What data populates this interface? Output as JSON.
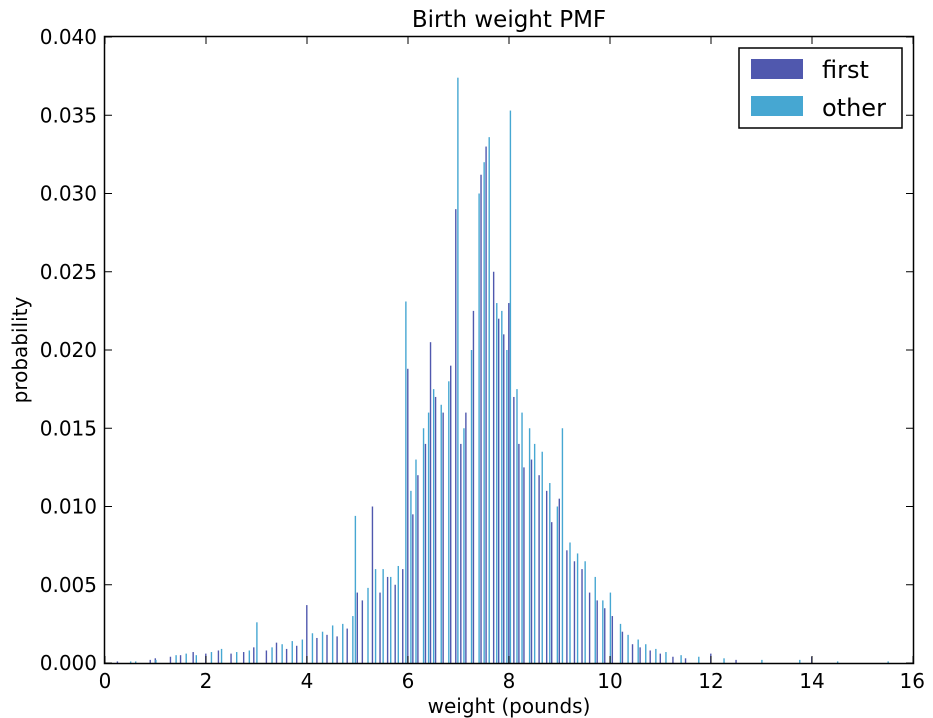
{
  "chart_data": {
    "type": "bar",
    "title": "Birth weight PMF",
    "xlabel": "weight (pounds)",
    "ylabel": "probability",
    "xlim": [
      0,
      16
    ],
    "ylim": [
      0,
      0.04
    ],
    "x_ticks": [
      "0",
      "2",
      "4",
      "6",
      "8",
      "10",
      "12",
      "14",
      "16"
    ],
    "y_ticks": [
      "0.000",
      "0.005",
      "0.010",
      "0.015",
      "0.020",
      "0.025",
      "0.030",
      "0.035",
      "0.040"
    ],
    "grid": false,
    "legend_position": "top-right",
    "colors": {
      "first": "#5058ae",
      "other": "#46a7d2"
    },
    "series": [
      {
        "name": "first",
        "points": [
          [
            0.25,
            0.0001
          ],
          [
            0.9,
            0.0002
          ],
          [
            1.0,
            0.0003
          ],
          [
            1.3,
            0.0004
          ],
          [
            1.5,
            0.0005
          ],
          [
            1.75,
            0.0007
          ],
          [
            2.0,
            0.0006
          ],
          [
            2.25,
            0.0008
          ],
          [
            2.5,
            0.0006
          ],
          [
            2.75,
            0.0007
          ],
          [
            2.95,
            0.001
          ],
          [
            3.2,
            0.0008
          ],
          [
            3.4,
            0.0013
          ],
          [
            3.6,
            0.0009
          ],
          [
            3.8,
            0.0011
          ],
          [
            4.0,
            0.0037
          ],
          [
            4.2,
            0.0016
          ],
          [
            4.4,
            0.0018
          ],
          [
            4.6,
            0.0017
          ],
          [
            4.8,
            0.0022
          ],
          [
            5.0,
            0.0045
          ],
          [
            5.1,
            0.004
          ],
          [
            5.3,
            0.01
          ],
          [
            5.45,
            0.0045
          ],
          [
            5.6,
            0.0055
          ],
          [
            5.75,
            0.005
          ],
          [
            5.9,
            0.006
          ],
          [
            6.0,
            0.0188
          ],
          [
            6.1,
            0.0095
          ],
          [
            6.2,
            0.012
          ],
          [
            6.35,
            0.014
          ],
          [
            6.45,
            0.0205
          ],
          [
            6.55,
            0.017
          ],
          [
            6.7,
            0.016
          ],
          [
            6.85,
            0.019
          ],
          [
            6.95,
            0.029
          ],
          [
            7.05,
            0.014
          ],
          [
            7.15,
            0.016
          ],
          [
            7.3,
            0.0225
          ],
          [
            7.45,
            0.0312
          ],
          [
            7.55,
            0.033
          ],
          [
            7.7,
            0.025
          ],
          [
            7.8,
            0.022
          ],
          [
            7.9,
            0.021
          ],
          [
            8.0,
            0.023
          ],
          [
            8.1,
            0.017
          ],
          [
            8.2,
            0.014
          ],
          [
            8.3,
            0.0125
          ],
          [
            8.45,
            0.013
          ],
          [
            8.6,
            0.012
          ],
          [
            8.75,
            0.011
          ],
          [
            8.85,
            0.009
          ],
          [
            9.0,
            0.0105
          ],
          [
            9.15,
            0.0072
          ],
          [
            9.3,
            0.0065
          ],
          [
            9.45,
            0.006
          ],
          [
            9.6,
            0.0045
          ],
          [
            9.75,
            0.004
          ],
          [
            9.9,
            0.0035
          ],
          [
            10.05,
            0.003
          ],
          [
            10.25,
            0.002
          ],
          [
            10.45,
            0.0012
          ],
          [
            10.6,
            0.001
          ],
          [
            10.8,
            0.0008
          ],
          [
            11.0,
            0.0006
          ],
          [
            11.25,
            0.0004
          ],
          [
            11.5,
            0.0003
          ],
          [
            12.0,
            0.0006
          ],
          [
            12.5,
            0.0002
          ],
          [
            14.0,
            0.0004
          ]
        ]
      },
      {
        "name": "other",
        "points": [
          [
            0.5,
            0.0001
          ],
          [
            0.6,
            0.0001
          ],
          [
            1.0,
            0.0002
          ],
          [
            1.4,
            0.0005
          ],
          [
            1.6,
            0.0006
          ],
          [
            1.8,
            0.0005
          ],
          [
            2.1,
            0.0007
          ],
          [
            2.3,
            0.0009
          ],
          [
            2.6,
            0.0007
          ],
          [
            2.85,
            0.0008
          ],
          [
            3.0,
            0.0026
          ],
          [
            3.3,
            0.001
          ],
          [
            3.5,
            0.0012
          ],
          [
            3.7,
            0.0014
          ],
          [
            3.9,
            0.0015
          ],
          [
            4.1,
            0.0019
          ],
          [
            4.3,
            0.002
          ],
          [
            4.5,
            0.0024
          ],
          [
            4.7,
            0.0025
          ],
          [
            4.9,
            0.003
          ],
          [
            4.95,
            0.0094
          ],
          [
            5.2,
            0.0048
          ],
          [
            5.35,
            0.006
          ],
          [
            5.5,
            0.006
          ],
          [
            5.65,
            0.0055
          ],
          [
            5.8,
            0.0062
          ],
          [
            5.95,
            0.0231
          ],
          [
            6.05,
            0.011
          ],
          [
            6.15,
            0.013
          ],
          [
            6.3,
            0.015
          ],
          [
            6.4,
            0.016
          ],
          [
            6.5,
            0.0175
          ],
          [
            6.65,
            0.0165
          ],
          [
            6.8,
            0.018
          ],
          [
            6.98,
            0.0374
          ],
          [
            7.1,
            0.015
          ],
          [
            7.25,
            0.02
          ],
          [
            7.4,
            0.03
          ],
          [
            7.5,
            0.032
          ],
          [
            7.6,
            0.0336
          ],
          [
            7.75,
            0.023
          ],
          [
            7.85,
            0.0225
          ],
          [
            7.95,
            0.02
          ],
          [
            8.02,
            0.0353
          ],
          [
            8.15,
            0.0175
          ],
          [
            8.25,
            0.016
          ],
          [
            8.4,
            0.015
          ],
          [
            8.5,
            0.014
          ],
          [
            8.65,
            0.0135
          ],
          [
            8.8,
            0.0115
          ],
          [
            8.95,
            0.01
          ],
          [
            9.05,
            0.015
          ],
          [
            9.2,
            0.0077
          ],
          [
            9.35,
            0.007
          ],
          [
            9.5,
            0.0065
          ],
          [
            9.7,
            0.0055
          ],
          [
            9.85,
            0.004
          ],
          [
            10.0,
            0.0045
          ],
          [
            10.2,
            0.0025
          ],
          [
            10.35,
            0.0018
          ],
          [
            10.55,
            0.0015
          ],
          [
            10.7,
            0.0012
          ],
          [
            10.9,
            0.0009
          ],
          [
            11.1,
            0.0007
          ],
          [
            11.4,
            0.0005
          ],
          [
            11.75,
            0.0004
          ],
          [
            12.25,
            0.0003
          ],
          [
            13.0,
            0.0002
          ],
          [
            13.75,
            0.0002
          ],
          [
            14.5,
            0.0001
          ],
          [
            15.5,
            0.0001
          ]
        ]
      }
    ]
  }
}
